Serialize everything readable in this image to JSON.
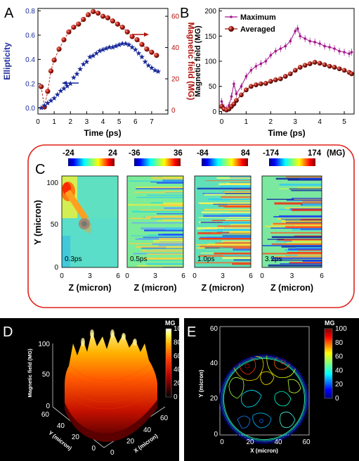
{
  "panels": {
    "A": {
      "letter": "A"
    },
    "B": {
      "letter": "B"
    },
    "C": {
      "letter": "C"
    },
    "D": {
      "letter": "D"
    },
    "E": {
      "letter": "E"
    }
  },
  "colors": {
    "ellipticity": "#1a2a9a",
    "magnetic": "#b0120c",
    "maximum": "#a4148c",
    "averaged": "#8e1a10",
    "panel_c_border": "#e0221a"
  },
  "chart_data": [
    {
      "panel": "A",
      "type": "scatter",
      "xlabel": "Time (ps)",
      "ylabel": "Ellipticity",
      "y2label": "Magnetic field (MG)",
      "xlim": [
        0,
        8
      ],
      "ylim": [
        -0.05,
        0.82
      ],
      "y2lim": [
        -2.5,
        65
      ],
      "xticks": [
        "0",
        "1",
        "2",
        "3",
        "4",
        "5",
        "6",
        "7"
      ],
      "yticks": [
        "0.0",
        "0.2",
        "0.4",
        "0.6",
        "0.8"
      ],
      "y2ticks": [
        "0",
        "20",
        "40",
        "60"
      ],
      "series": [
        {
          "axis": "left",
          "marker": "star",
          "points": [
            [
              0.2,
              0.0
            ],
            [
              0.4,
              0.02
            ],
            [
              0.6,
              0.04
            ],
            [
              0.8,
              0.06
            ],
            [
              1.0,
              0.08
            ],
            [
              1.2,
              0.11
            ],
            [
              1.4,
              0.14
            ],
            [
              1.6,
              0.16
            ],
            [
              1.8,
              0.18
            ],
            [
              2.0,
              0.2
            ],
            [
              2.2,
              0.25
            ],
            [
              2.4,
              0.28
            ],
            [
              2.6,
              0.32
            ],
            [
              2.8,
              0.36
            ],
            [
              3.0,
              0.38
            ],
            [
              3.2,
              0.42
            ],
            [
              3.4,
              0.43
            ],
            [
              3.6,
              0.45
            ],
            [
              3.8,
              0.47
            ],
            [
              4.0,
              0.48
            ],
            [
              4.2,
              0.49
            ],
            [
              4.4,
              0.5
            ],
            [
              4.6,
              0.5
            ],
            [
              4.8,
              0.51
            ],
            [
              5.0,
              0.52
            ],
            [
              5.2,
              0.53
            ],
            [
              5.4,
              0.53
            ],
            [
              5.6,
              0.52
            ],
            [
              5.8,
              0.5
            ],
            [
              6.0,
              0.48
            ],
            [
              6.2,
              0.45
            ],
            [
              6.4,
              0.42
            ],
            [
              6.6,
              0.38
            ],
            [
              6.8,
              0.35
            ],
            [
              7.0,
              0.33
            ],
            [
              7.2,
              0.31
            ],
            [
              7.4,
              0.3
            ]
          ]
        },
        {
          "axis": "right",
          "marker": "sphere",
          "points": [
            [
              0.2,
              15
            ],
            [
              0.4,
              2
            ],
            [
              0.6,
              12
            ],
            [
              0.8,
              25
            ],
            [
              1.0,
              32
            ],
            [
              1.3,
              39
            ],
            [
              1.6,
              45
            ],
            [
              1.9,
              50
            ],
            [
              2.2,
              53
            ],
            [
              2.5,
              55
            ],
            [
              2.8,
              58
            ],
            [
              3.1,
              61
            ],
            [
              3.4,
              63
            ],
            [
              3.7,
              62
            ],
            [
              4.0,
              60
            ],
            [
              4.3,
              59
            ],
            [
              4.6,
              57
            ],
            [
              4.9,
              55
            ],
            [
              5.2,
              53
            ],
            [
              5.5,
              50
            ],
            [
              5.8,
              47
            ],
            [
              6.1,
              45
            ],
            [
              6.4,
              42
            ],
            [
              6.7,
              39
            ],
            [
              7.0,
              37
            ],
            [
              7.3,
              35
            ]
          ]
        }
      ]
    },
    {
      "panel": "B",
      "type": "line",
      "xlabel": "Time (ps)",
      "ylabel": "Magnetic field (MG)",
      "xlim": [
        -0.1,
        5.4
      ],
      "ylim": [
        -5,
        205
      ],
      "xticks": [
        "0",
        "1",
        "2",
        "3",
        "4",
        "5"
      ],
      "yticks": [
        "0",
        "50",
        "100",
        "150",
        "200"
      ],
      "legend": "top-left",
      "series": [
        {
          "name": "Maximum",
          "x": [
            0.0,
            0.1,
            0.2,
            0.3,
            0.4,
            0.5,
            0.6,
            0.8,
            1.0,
            1.2,
            1.4,
            1.6,
            1.8,
            2.0,
            2.2,
            2.4,
            2.6,
            2.8,
            3.0,
            3.1,
            3.2,
            3.4,
            3.6,
            3.8,
            4.0,
            4.2,
            4.4,
            4.6,
            4.8,
            5.0,
            5.2,
            5.3
          ],
          "values": [
            20,
            8,
            5,
            12,
            30,
            55,
            35,
            50,
            70,
            82,
            90,
            95,
            100,
            112,
            120,
            125,
            130,
            140,
            160,
            165,
            150,
            145,
            140,
            138,
            135,
            130,
            128,
            125,
            120,
            118,
            115,
            118
          ]
        },
        {
          "name": "Averaged",
          "x": [
            0.0,
            0.1,
            0.2,
            0.3,
            0.4,
            0.5,
            0.6,
            0.8,
            1.0,
            1.2,
            1.4,
            1.6,
            1.8,
            2.0,
            2.2,
            2.4,
            2.6,
            2.8,
            3.0,
            3.2,
            3.4,
            3.6,
            3.8,
            4.0,
            4.2,
            4.4,
            4.6,
            4.8,
            5.0,
            5.2,
            5.3
          ],
          "values": [
            10,
            5,
            3,
            5,
            10,
            15,
            22,
            33,
            43,
            50,
            53,
            55,
            56,
            60,
            63,
            65,
            70,
            75,
            82,
            88,
            92,
            95,
            98,
            96,
            93,
            90,
            88,
            85,
            82,
            78,
            75
          ]
        }
      ]
    },
    {
      "panel": "C",
      "type": "heatmap",
      "xlabel": "Z (micron)",
      "ylabel": "Y (micron)",
      "xticks": [
        "0",
        "3",
        "6"
      ],
      "yticks": [
        "0",
        "50",
        "100"
      ],
      "colorbar_unit": "(MG)",
      "maps": [
        {
          "time": "0.3ps",
          "cmin": "-24",
          "cmax": "24"
        },
        {
          "time": "0.5ps",
          "cmin": "-36",
          "cmax": "36"
        },
        {
          "time": "1.0ps",
          "cmin": "-84",
          "cmax": "84"
        },
        {
          "time": "3.2ps",
          "cmin": "-174",
          "cmax": "174"
        }
      ]
    },
    {
      "panel": "D",
      "type": "surface",
      "zlabel": "Magnetic field (MG)",
      "xlabel": "X (micron)",
      "ylabel": "Y (micron)",
      "zticks": [
        "0",
        "50",
        "100"
      ],
      "xticks": [
        "0",
        "20",
        "40",
        "60"
      ],
      "yticks": [
        "0",
        "20",
        "40",
        "60"
      ],
      "colorbar_title": "MG",
      "colorbar_ticks": [
        "0",
        "20",
        "40",
        "60",
        "80",
        "100"
      ]
    },
    {
      "panel": "E",
      "type": "contour",
      "xlabel": "X (micron)",
      "ylabel": "Y (micron)",
      "xticks": [
        "0",
        "20",
        "40",
        "60"
      ],
      "yticks": [
        "0",
        "20",
        "40",
        "60"
      ],
      "colorbar_title": "MG",
      "colorbar_ticks": [
        "0",
        "20",
        "40",
        "60",
        "80",
        "100"
      ]
    }
  ]
}
